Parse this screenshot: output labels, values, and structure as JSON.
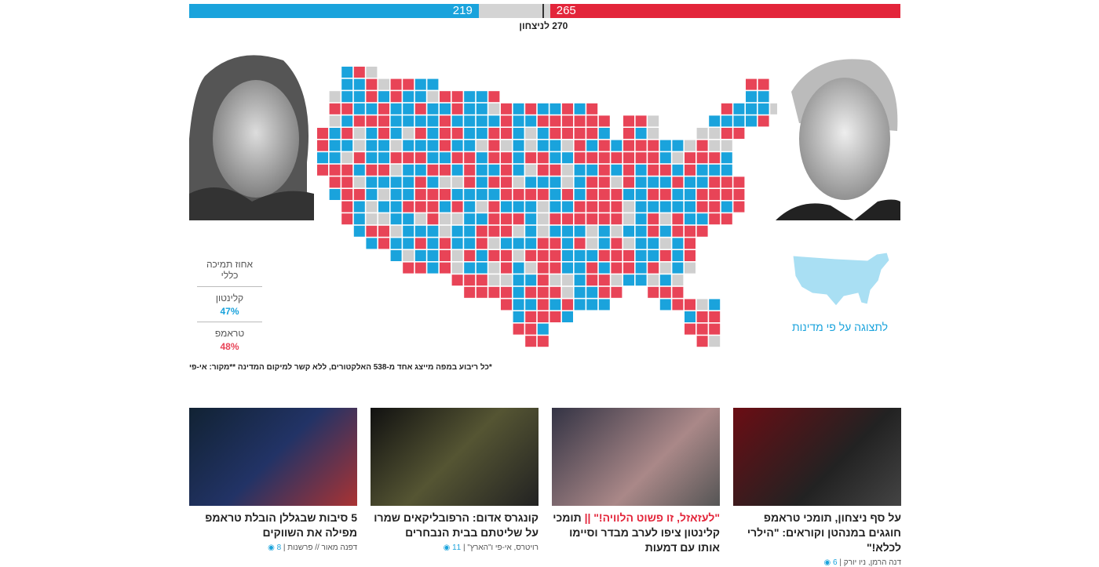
{
  "results": {
    "clinton": {
      "electors": 219,
      "color": "#1aa3dc"
    },
    "trump": {
      "electors": 265,
      "color": "#e3253a"
    },
    "total": 538,
    "undecided_color": "#d4d4d4",
    "threshold": {
      "value": 270,
      "label": "270 לניצחון"
    }
  },
  "support": {
    "title": "אחוז תמיכה כללי",
    "rows": [
      {
        "name": "קלינטון",
        "percent": "47%"
      },
      {
        "name": "טראמפ",
        "percent": "48%"
      }
    ]
  },
  "state_view_link": "לתצוגה על פי מדינות",
  "footnote": "*כל ריבוע במפה מייצג אחד מ-538 האלקטורים, ללא קשר למיקום המדינה  **מקור: אי-פי",
  "articles": [
    {
      "kicker": "",
      "title": "על סף ניצחון, תומכי טראמפ חוגגים במנהטן וקוראים: \"הילרי לכלא!\"",
      "byline": "דנה הרמן, ניו יורק",
      "comments": "6"
    },
    {
      "kicker": "\"לעזאזל, זו פשוט הלוויה!\" ||",
      "title": "תומכי קלינטון ציפו לערב מבדר וסיימו אותו עם דמעות",
      "byline": "",
      "comments": ""
    },
    {
      "kicker": "",
      "title": "קונגרס אדום: הרפובליקאים שמרו על שליטתם בבית הנבחרים",
      "byline": "רויטרס, אי-פי ו\"הארץ\"",
      "comments": "11"
    },
    {
      "kicker": "",
      "title": "5 סיבות שבגללן הובלת טראמפ מפילה את השווקים",
      "byline": "דפנה מאור // פרשנות",
      "comments": "8"
    }
  ]
}
